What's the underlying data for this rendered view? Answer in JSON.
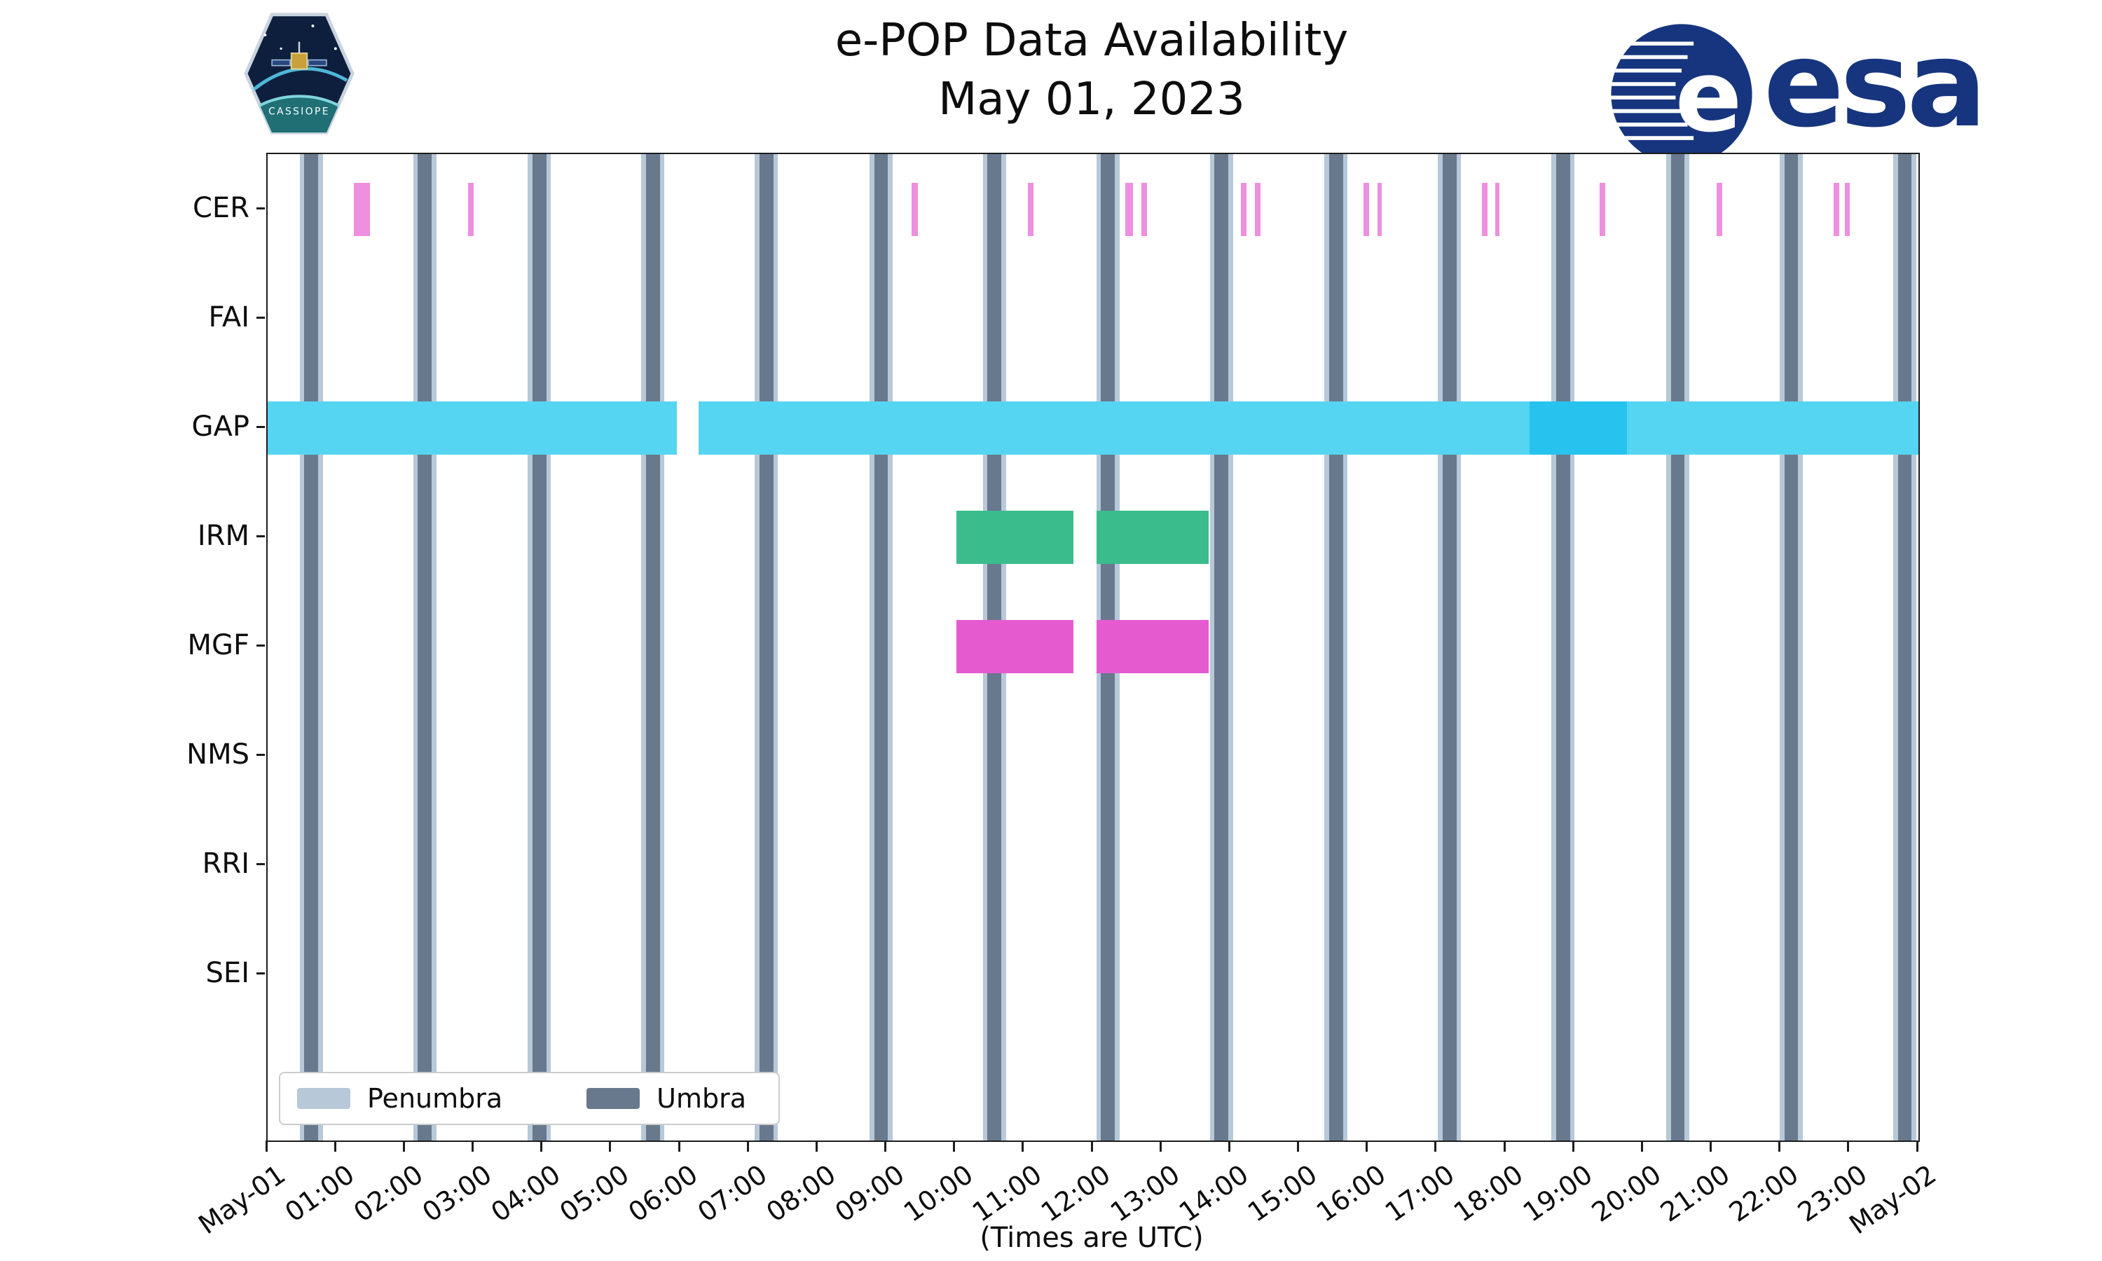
{
  "title": {
    "line1": "e-POP Data Availability",
    "line2": "May 01, 2023"
  },
  "footer": {
    "xlabel": "(Times are UTC)"
  },
  "logos": {
    "cassiope_label": "CASSIOPE",
    "esa_label": "esa",
    "esa_blue": "#16357e"
  },
  "legend": {
    "items": [
      {
        "label": "Penumbra",
        "color": "#b7c8d9"
      },
      {
        "label": "Umbra",
        "color": "#68798d"
      }
    ]
  },
  "chart_data": {
    "type": "timeline",
    "title": "e-POP Data Availability",
    "subtitle": "May 01, 2023",
    "xlabel": "(Times are UTC)",
    "x_axis": {
      "start_label": "May-01",
      "end_label": "May-02",
      "total_minutes": 1440,
      "tick_interval_minutes": 60,
      "tick_labels": [
        "May-01",
        "01:00",
        "02:00",
        "03:00",
        "04:00",
        "05:00",
        "06:00",
        "07:00",
        "08:00",
        "09:00",
        "10:00",
        "11:00",
        "12:00",
        "13:00",
        "14:00",
        "15:00",
        "16:00",
        "17:00",
        "18:00",
        "19:00",
        "20:00",
        "21:00",
        "22:00",
        "23:00",
        "May-02"
      ]
    },
    "rows": [
      "CER",
      "FAI",
      "GAP",
      "IRM",
      "MGF",
      "NMS",
      "RRI",
      "SEI"
    ],
    "eclipse_bands": {
      "penumbra_color": "#b7c8d9",
      "umbra_color": "#68798d",
      "penumbra_halfwidth_min": 10,
      "umbra_halfwidth_min": 6,
      "centers_min": [
        38,
        137,
        237,
        336,
        435,
        535,
        634,
        733,
        832,
        932,
        1031,
        1130,
        1230,
        1329,
        1428
      ]
    },
    "series": [
      {
        "row": "CER",
        "color": "#ee8fdf",
        "intervals_min": [
          [
            75,
            89
          ],
          [
            175,
            180
          ],
          [
            562,
            567
          ],
          [
            663,
            668
          ],
          [
            748,
            755
          ],
          [
            762,
            767
          ],
          [
            849,
            854
          ],
          [
            861,
            866
          ],
          [
            956,
            961
          ],
          [
            968,
            972
          ],
          [
            1059,
            1064
          ],
          [
            1071,
            1074
          ],
          [
            1162,
            1167
          ],
          [
            1264,
            1269
          ],
          [
            1366,
            1371
          ],
          [
            1376,
            1380
          ]
        ]
      },
      {
        "row": "GAP",
        "color": "#55d5f2",
        "intervals_min": [
          [
            0,
            357
          ],
          [
            376,
            1440
          ]
        ],
        "overlay_color": "#27c3ee",
        "overlay_intervals_min": [
          [
            1101,
            1186
          ]
        ]
      },
      {
        "row": "IRM",
        "color": "#3abc8d",
        "intervals_min": [
          [
            601,
            703
          ],
          [
            723,
            821
          ]
        ]
      },
      {
        "row": "MGF",
        "color": "#e65ad0",
        "intervals_min": [
          [
            601,
            703
          ],
          [
            723,
            821
          ]
        ]
      }
    ]
  }
}
